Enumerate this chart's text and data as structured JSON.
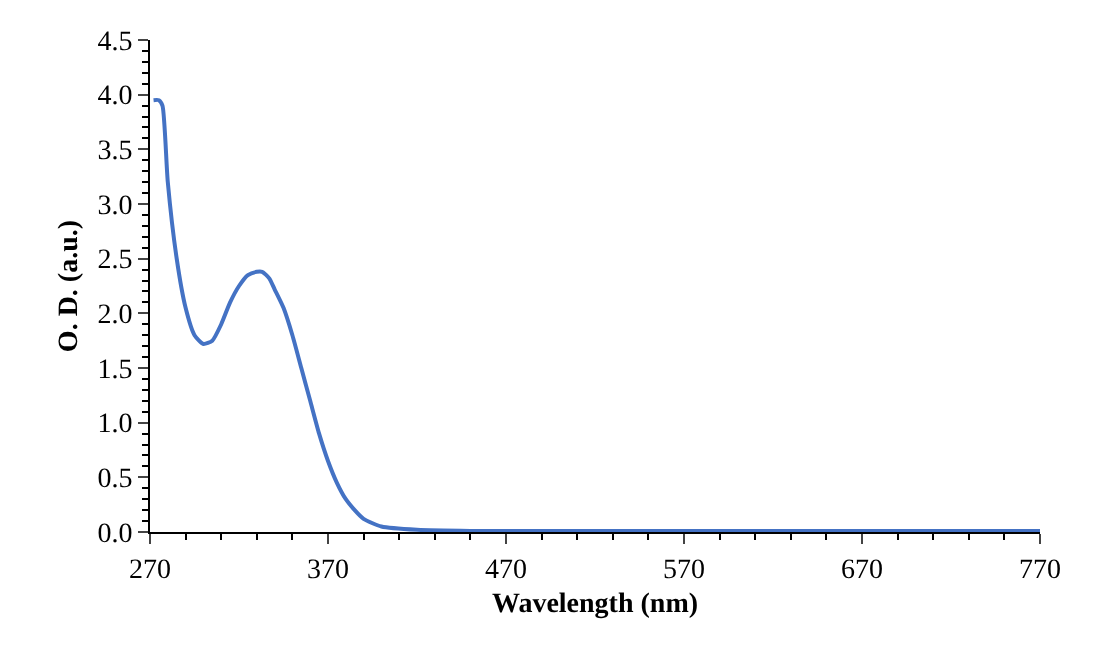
{
  "chart_data": {
    "type": "line",
    "xlabel": "Wavelength (nm)",
    "ylabel": "O. D. (a.u.)",
    "xlim": [
      270,
      770
    ],
    "xticks": [
      270,
      370,
      470,
      570,
      670,
      770
    ],
    "ylim": [
      0,
      4.5
    ],
    "yticks": [
      {
        "value": 0,
        "label": "0.0"
      },
      {
        "value": 0.5,
        "label": "0.5"
      },
      {
        "value": 1,
        "label": "1.0"
      },
      {
        "value": 1.5,
        "label": "1.5"
      },
      {
        "value": 2,
        "label": "2.0"
      },
      {
        "value": 2.5,
        "label": "2.5"
      },
      {
        "value": 3,
        "label": "3.0"
      },
      {
        "value": 3.5,
        "label": "3.5"
      },
      {
        "value": 4,
        "label": "4.0"
      },
      {
        "value": 4.5,
        "label": "4.5"
      }
    ],
    "legend": false,
    "marker": "none",
    "line_style": "solid",
    "series": [
      {
        "color": "#4472c4",
        "x": [
          272,
          275,
          277,
          280,
          285,
          290,
          295,
          300,
          305,
          310,
          315,
          320,
          325,
          330,
          333,
          337,
          340,
          345,
          350,
          355,
          360,
          365,
          370,
          375,
          380,
          385,
          390,
          400,
          420,
          450,
          500,
          600,
          700,
          770
        ],
        "values": [
          3.95,
          3.95,
          3.9,
          3.2,
          2.5,
          2.05,
          1.8,
          1.72,
          1.75,
          1.9,
          2.1,
          2.25,
          2.35,
          2.38,
          2.38,
          2.32,
          2.22,
          2.05,
          1.8,
          1.5,
          1.2,
          0.9,
          0.65,
          0.45,
          0.3,
          0.2,
          0.12,
          0.05,
          0.02,
          0.01,
          0.01,
          0.01,
          0.01,
          0.01
        ]
      }
    ]
  }
}
